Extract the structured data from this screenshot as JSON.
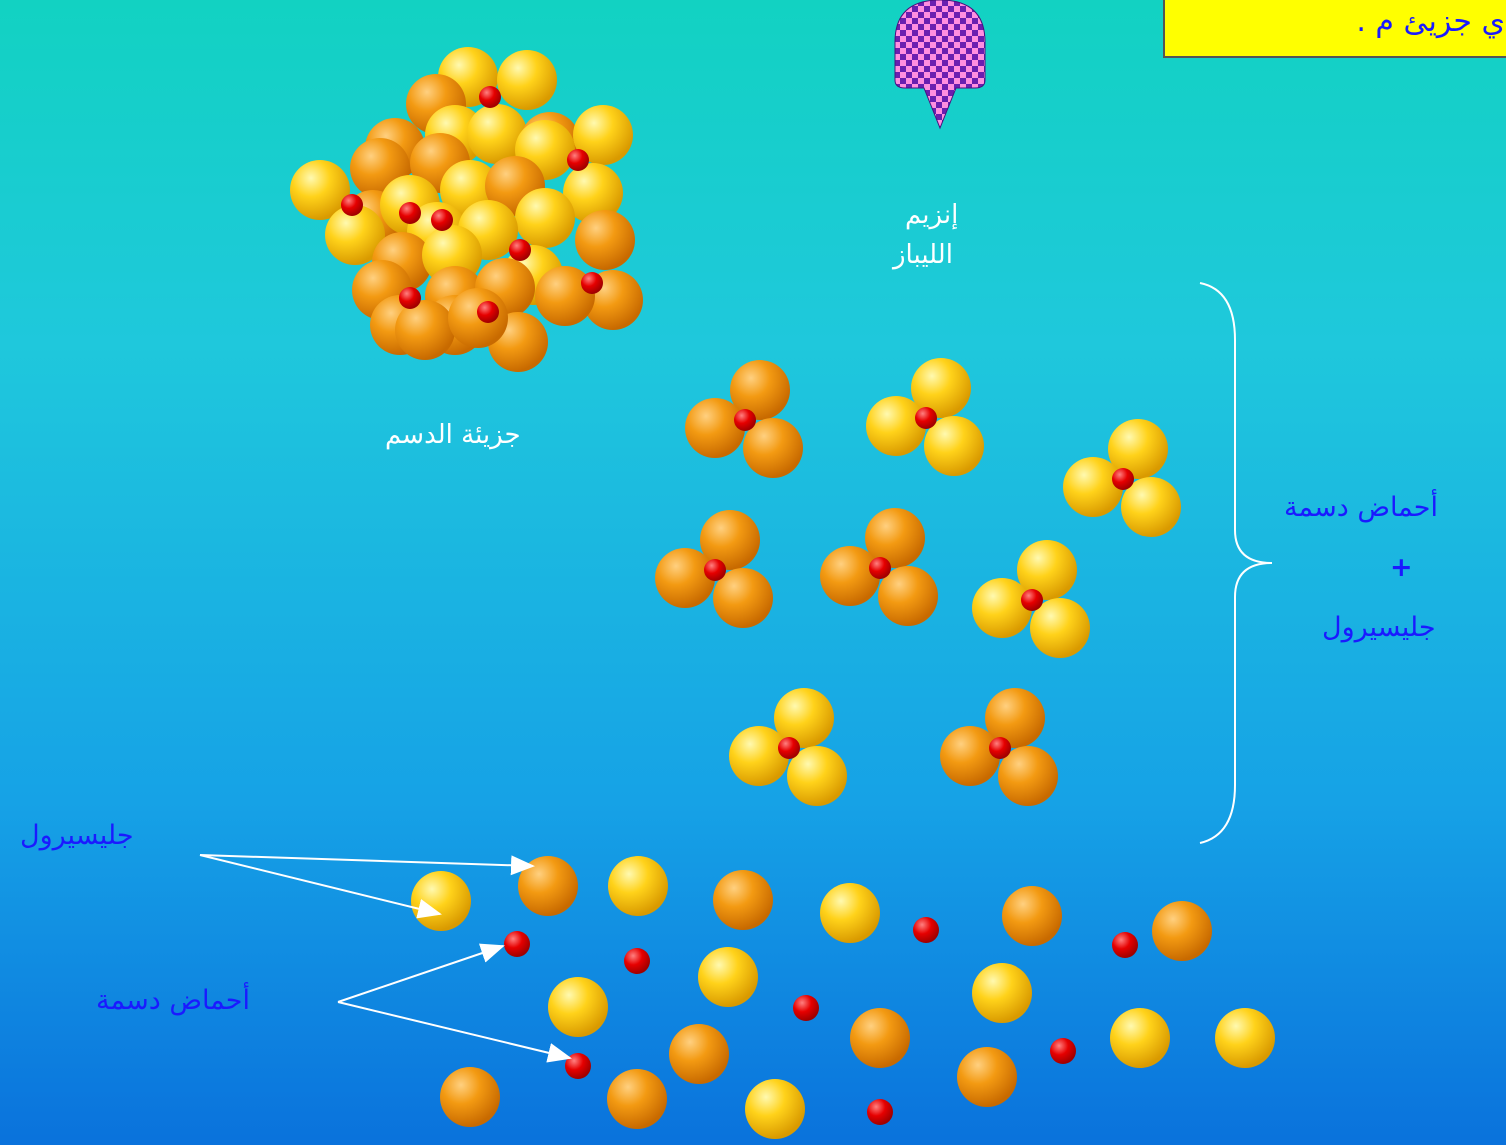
{
  "header": {
    "title_partial": "ي جزيئ م ."
  },
  "labels": {
    "fat_molecule": "جزيئة الدسم",
    "enzyme_line1": "إنزيم",
    "enzyme_line2": "الليباز",
    "products_line1": "أحماض دسمة",
    "products_plus": "+",
    "products_line2": "جليسيرول",
    "glycerol": "جليسيرول",
    "fatty_acids": "أحماض دسمة"
  },
  "colors": {
    "yellow_ball": "#ffd21a",
    "orange_ball": "#f39a12",
    "red_link": "#e60000",
    "label_blue": "#1a1aff",
    "title_bg": "#ffff00"
  }
}
